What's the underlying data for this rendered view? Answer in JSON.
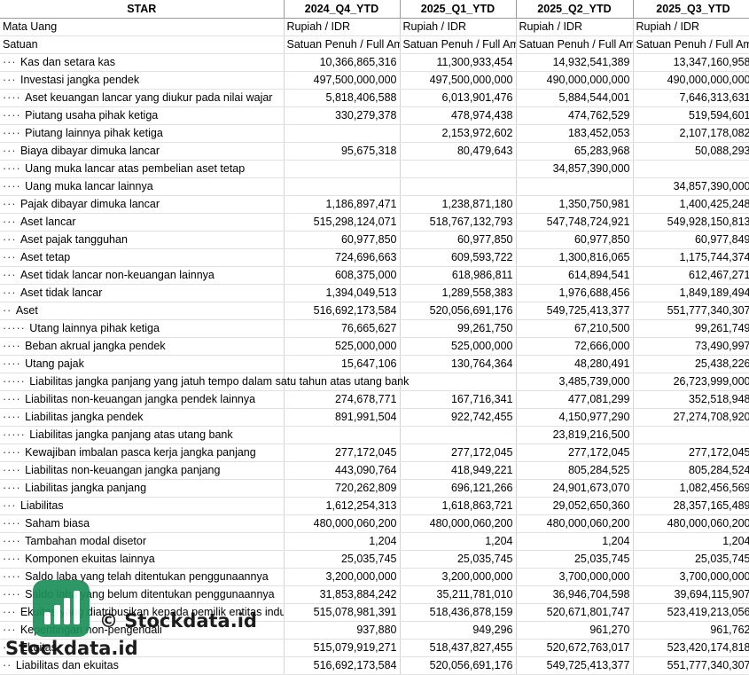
{
  "header": [
    "STAR",
    "2024_Q4_YTD",
    "2025_Q1_YTD",
    "2025_Q2_YTD",
    "2025_Q3_YTD"
  ],
  "meta_rows": [
    {
      "label": "Mata Uang",
      "values": [
        "Rupiah / IDR",
        "Rupiah / IDR",
        "Rupiah / IDR",
        "Rupiah / IDR"
      ]
    },
    {
      "label": "Satuan",
      "values": [
        "Satuan Penuh / Full Amount",
        "Satuan Penuh / Full Amount",
        "Satuan Penuh / Full Amount",
        "Satuan Penuh / Full Amount"
      ]
    }
  ],
  "rows": [
    {
      "indent": 3,
      "label": "Kas dan setara kas",
      "values": [
        "10,366,865,316",
        "11,300,933,454",
        "14,932,541,389",
        "13,347,160,958"
      ]
    },
    {
      "indent": 3,
      "label": "Investasi jangka pendek",
      "values": [
        "497,500,000,000",
        "497,500,000,000",
        "490,000,000,000",
        "490,000,000,000"
      ]
    },
    {
      "indent": 4,
      "label": "Aset keuangan lancar yang diukur pada nilai wajar",
      "values": [
        "5,818,406,588",
        "6,013,901,476",
        "5,884,544,001",
        "7,646,313,631"
      ]
    },
    {
      "indent": 4,
      "label": "Piutang usaha pihak ketiga",
      "values": [
        "330,279,378",
        "478,974,438",
        "474,762,529",
        "519,594,601"
      ]
    },
    {
      "indent": 4,
      "label": "Piutang lainnya pihak ketiga",
      "values": [
        "",
        "2,153,972,602",
        "183,452,053",
        "2,107,178,082"
      ]
    },
    {
      "indent": 3,
      "label": "Biaya dibayar dimuka lancar",
      "values": [
        "95,675,318",
        "80,479,643",
        "65,283,968",
        "50,088,293"
      ]
    },
    {
      "indent": 4,
      "label": "Uang muka lancar atas pembelian aset tetap",
      "values": [
        "",
        "",
        "34,857,390,000",
        ""
      ]
    },
    {
      "indent": 4,
      "label": "Uang muka lancar lainnya",
      "values": [
        "",
        "",
        "",
        "34,857,390,000"
      ]
    },
    {
      "indent": 3,
      "label": "Pajak dibayar dimuka lancar",
      "values": [
        "1,186,897,471",
        "1,238,871,180",
        "1,350,750,981",
        "1,400,425,248"
      ]
    },
    {
      "indent": 3,
      "label": "Aset lancar",
      "values": [
        "515,298,124,071",
        "518,767,132,793",
        "547,748,724,921",
        "549,928,150,813"
      ]
    },
    {
      "indent": 3,
      "label": "Aset pajak tangguhan",
      "values": [
        "60,977,850",
        "60,977,850",
        "60,977,850",
        "60,977,849"
      ]
    },
    {
      "indent": 3,
      "label": "Aset tetap",
      "values": [
        "724,696,663",
        "609,593,722",
        "1,300,816,065",
        "1,175,744,374"
      ]
    },
    {
      "indent": 3,
      "label": "Aset tidak lancar non-keuangan lainnya",
      "values": [
        "608,375,000",
        "618,986,811",
        "614,894,541",
        "612,467,271"
      ]
    },
    {
      "indent": 3,
      "label": "Aset tidak lancar",
      "values": [
        "1,394,049,513",
        "1,289,558,383",
        "1,976,688,456",
        "1,849,189,494"
      ]
    },
    {
      "indent": 2,
      "label": "Aset",
      "values": [
        "516,692,173,584",
        "520,056,691,176",
        "549,725,413,377",
        "551,777,340,307"
      ]
    },
    {
      "indent": 5,
      "label": "Utang lainnya pihak ketiga",
      "values": [
        "76,665,627",
        "99,261,750",
        "67,210,500",
        "99,261,749"
      ]
    },
    {
      "indent": 4,
      "label": "Beban akrual jangka pendek",
      "values": [
        "525,000,000",
        "525,000,000",
        "72,666,000",
        "73,490,997"
      ]
    },
    {
      "indent": 4,
      "label": "Utang pajak",
      "values": [
        "15,647,106",
        "130,764,364",
        "48,280,491",
        "25,438,226"
      ]
    },
    {
      "indent": 5,
      "label": "Liabilitas jangka panjang yang jatuh tempo dalam satu tahun atas utang bank",
      "values": [
        "",
        "",
        "3,485,739,000",
        "26,723,999,000"
      ]
    },
    {
      "indent": 4,
      "label": "Liabilitas non-keuangan jangka pendek lainnya",
      "values": [
        "274,678,771",
        "167,716,341",
        "477,081,299",
        "352,518,948"
      ]
    },
    {
      "indent": 4,
      "label": "Liabilitas jangka pendek",
      "values": [
        "891,991,504",
        "922,742,455",
        "4,150,977,290",
        "27,274,708,920"
      ]
    },
    {
      "indent": 5,
      "label": "Liabilitas jangka panjang atas utang bank",
      "values": [
        "",
        "",
        "23,819,216,500",
        ""
      ]
    },
    {
      "indent": 4,
      "label": "Kewajiban imbalan pasca kerja jangka panjang",
      "values": [
        "277,172,045",
        "277,172,045",
        "277,172,045",
        "277,172,045"
      ]
    },
    {
      "indent": 4,
      "label": "Liabilitas non-keuangan jangka panjang",
      "values": [
        "443,090,764",
        "418,949,221",
        "805,284,525",
        "805,284,524"
      ]
    },
    {
      "indent": 4,
      "label": "Liabilitas jangka panjang",
      "values": [
        "720,262,809",
        "696,121,266",
        "24,901,673,070",
        "1,082,456,569"
      ]
    },
    {
      "indent": 3,
      "label": "Liabilitas",
      "values": [
        "1,612,254,313",
        "1,618,863,721",
        "29,052,650,360",
        "28,357,165,489"
      ]
    },
    {
      "indent": 4,
      "label": "Saham biasa",
      "values": [
        "480,000,060,200",
        "480,000,060,200",
        "480,000,060,200",
        "480,000,060,200"
      ]
    },
    {
      "indent": 4,
      "label": "Tambahan modal disetor",
      "values": [
        "1,204",
        "1,204",
        "1,204",
        "1,204"
      ]
    },
    {
      "indent": 4,
      "label": "Komponen ekuitas lainnya",
      "values": [
        "25,035,745",
        "25,035,745",
        "25,035,745",
        "25,035,745"
      ]
    },
    {
      "indent": 4,
      "label": "Saldo laba yang telah ditentukan penggunaannya",
      "values": [
        "3,200,000,000",
        "3,200,000,000",
        "3,700,000,000",
        "3,700,000,000"
      ]
    },
    {
      "indent": 4,
      "label": "Saldo laba yang belum ditentukan penggunaannya",
      "values": [
        "31,853,884,242",
        "35,211,781,010",
        "36,946,704,598",
        "39,694,115,907"
      ]
    },
    {
      "indent": 3,
      "label": "Ekuitas yang diatribusikan kepada pemilik entitas induk",
      "values": [
        "515,078,981,391",
        "518,436,878,159",
        "520,671,801,747",
        "523,419,213,056"
      ]
    },
    {
      "indent": 3,
      "label": "Kepentingan non-pengendali",
      "values": [
        "937,880",
        "949,296",
        "961,270",
        "961,762"
      ]
    },
    {
      "indent": 3,
      "label": "Ekuitas",
      "values": [
        "515,079,919,271",
        "518,437,827,455",
        "520,672,763,017",
        "523,420,174,818"
      ]
    },
    {
      "indent": 2,
      "label": "Liabilitas dan ekuitas",
      "values": [
        "516,692,173,584",
        "520,056,691,176",
        "549,725,413,377",
        "551,777,340,307"
      ]
    }
  ],
  "watermark": {
    "brand": "© Stockdata.id",
    "brand2": "Stockdata.id",
    "icon": "bar-chart-logo-icon",
    "color": "#1c8f5a"
  }
}
